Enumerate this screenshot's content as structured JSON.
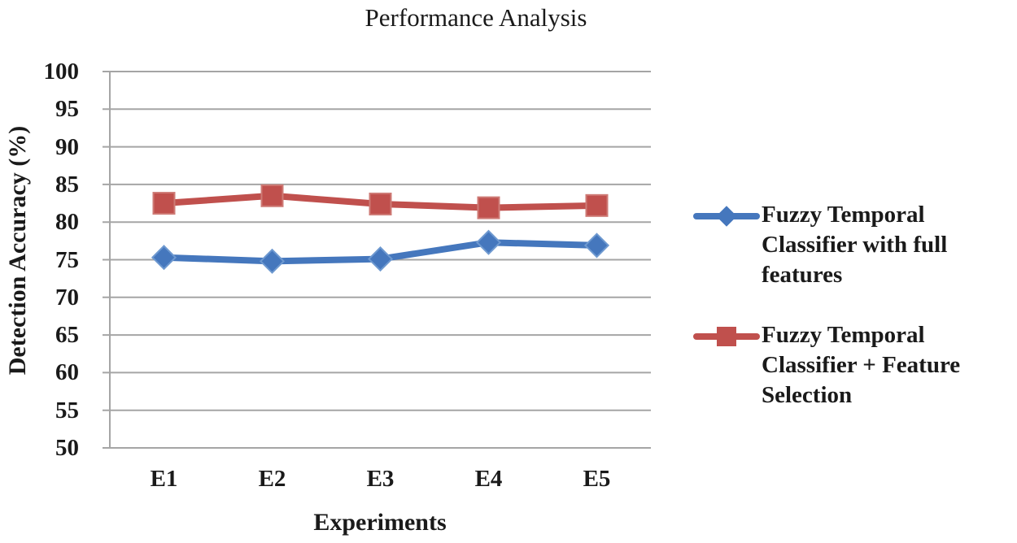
{
  "title": "Performance Analysis",
  "chart_data": {
    "type": "line",
    "title": "Performance Analysis",
    "xlabel": "Experiments",
    "ylabel": "Detection Accuracy (%)",
    "categories": [
      "E1",
      "E2",
      "E3",
      "E4",
      "E5"
    ],
    "series": [
      {
        "name": "Fuzzy Temporal Classifier with full features",
        "label_lines": [
          "Fuzzy Temporal",
          "Classifier with full",
          "features"
        ],
        "marker": "diamond",
        "color": "#4577BD",
        "edge_color": "#6E99D0",
        "values": [
          75.3,
          74.8,
          75.1,
          77.3,
          76.9
        ]
      },
      {
        "name": "Fuzzy Temporal Classifier + Feature Selection",
        "label_lines": [
          "Fuzzy Temporal",
          "Classifier + Feature",
          "Selection"
        ],
        "marker": "square",
        "color": "#C0504D",
        "edge_color": "#CE7A75",
        "values": [
          82.5,
          83.5,
          82.4,
          81.9,
          82.2
        ]
      }
    ],
    "ylim": [
      50,
      100
    ],
    "ytick_step": 5,
    "yticks": [
      100,
      95,
      90,
      85,
      80,
      75,
      70,
      65,
      60,
      55,
      50
    ],
    "grid": true,
    "legend_position": "right",
    "gridline_color": "#A5A5A5",
    "text_color": "#1a1a1a"
  }
}
